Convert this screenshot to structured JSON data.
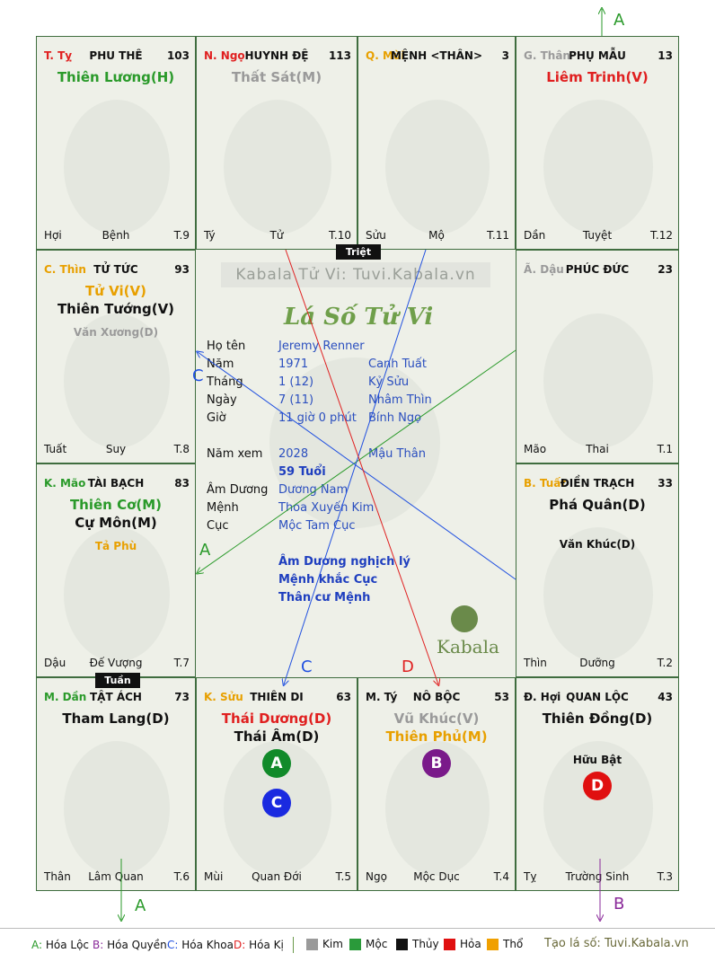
{
  "palaces": [
    {
      "branch": "T. Tỵ",
      "branch_color": "#e02020",
      "palace": "PHU THÊ",
      "number": "103",
      "stars": [
        {
          "text": "Thiên Lương(H)",
          "color": "#2a9a2a",
          "size": 15
        }
      ],
      "minor": [],
      "bottom_left": "Hợi",
      "bottom_center": "Bệnh",
      "bottom_right": "T.9"
    },
    {
      "branch": "N. Ngọ",
      "branch_color": "#e02020",
      "palace": "HUYNH ĐỆ",
      "number": "113",
      "stars": [
        {
          "text": "Thất Sát(M)",
          "color": "#9a9a9a",
          "size": 15
        }
      ],
      "minor": [],
      "bottom_left": "Tý",
      "bottom_center": "Tử",
      "bottom_right": "T.10"
    },
    {
      "branch": "Q. Mùi",
      "branch_color": "#e8a000",
      "palace": "MỆNH <THÂN>",
      "number": "3",
      "stars": [],
      "minor": [],
      "bottom_left": "Sửu",
      "bottom_center": "Mộ",
      "bottom_right": "T.11"
    },
    {
      "branch": "G. Thân",
      "branch_color": "#9a9a9a",
      "palace": "PHỤ MẪU",
      "number": "13",
      "stars": [
        {
          "text": "Liêm Trinh(V)",
          "color": "#e02020",
          "size": 15
        }
      ],
      "minor": [],
      "bottom_left": "Dần",
      "bottom_center": "Tuyệt",
      "bottom_right": "T.12"
    },
    {
      "branch": "C. Thìn",
      "branch_color": "#e8a000",
      "palace": "TỬ TỨC",
      "number": "93",
      "stars": [
        {
          "text": "Tử Vi(V)",
          "color": "#e8a000",
          "size": 15
        },
        {
          "text": "Thiên Tướng(V)",
          "color": "#111111",
          "size": 15
        }
      ],
      "minor": [
        {
          "text": "Văn Xương(D)",
          "color": "#9a9a9a"
        }
      ],
      "bottom_left": "Tuất",
      "bottom_center": "Suy",
      "bottom_right": "T.8"
    },
    {
      "branch": "Ã. Dậu",
      "branch_color": "#9a9a9a",
      "palace": "PHÚC ĐỨC",
      "number": "23",
      "stars": [],
      "minor": [],
      "bottom_left": "Mão",
      "bottom_center": "Thai",
      "bottom_right": "T.1"
    },
    {
      "branch": "K. Mão",
      "branch_color": "#2a9a2a",
      "palace": "TÀI BẠCH",
      "number": "83",
      "stars": [
        {
          "text": "Thiên Cơ(M)",
          "color": "#2a9a2a",
          "size": 15
        },
        {
          "text": "Cự Môn(M)",
          "color": "#111111",
          "size": 15
        }
      ],
      "minor": [
        {
          "text": "Tả Phù",
          "color": "#e8a000"
        }
      ],
      "bottom_left": "Dậu",
      "bottom_center": "Đế Vượng",
      "bottom_right": "T.7"
    },
    {
      "branch": "B. Tuất",
      "branch_color": "#e8a000",
      "palace": "ĐIỀN TRẠCH",
      "number": "33",
      "stars": [
        {
          "text": "Phá Quân(D)",
          "color": "#111111",
          "size": 15
        }
      ],
      "minor": [
        {
          "text": "Văn Khúc(D)",
          "color": "#111111"
        }
      ],
      "bottom_left": "Thìn",
      "bottom_center": "Dưỡng",
      "bottom_right": "T.2"
    },
    {
      "branch": "M. Dần",
      "branch_color": "#2a9a2a",
      "palace": "TẬT ÁCH",
      "number": "73",
      "stars": [
        {
          "text": "Tham Lang(D)",
          "color": "#111111",
          "size": 15
        }
      ],
      "minor": [],
      "bottom_left": "Thân",
      "bottom_center": "Lâm Quan",
      "bottom_right": "T.6"
    },
    {
      "branch": "K. Sửu",
      "branch_color": "#e8a000",
      "palace": "THIÊN DI",
      "number": "63",
      "stars": [
        {
          "text": "Thái Dương(D)",
          "color": "#e02020",
          "size": 15
        },
        {
          "text": "Thái Âm(D)",
          "color": "#111111",
          "size": 15
        }
      ],
      "minor": [],
      "bottom_left": "Mùi",
      "bottom_center": "Quan Đới",
      "bottom_right": "T.5"
    },
    {
      "branch": "M. Tý",
      "branch_color": "#111111",
      "palace": "NÔ BỘC",
      "number": "53",
      "stars": [
        {
          "text": "Vũ Khúc(V)",
          "color": "#9a9a9a",
          "size": 15
        },
        {
          "text": "Thiên Phủ(M)",
          "color": "#e8a000",
          "size": 15
        }
      ],
      "minor": [],
      "bottom_left": "Ngọ",
      "bottom_center": "Mộc Dục",
      "bottom_right": "T.4"
    },
    {
      "branch": "Đ. Hợi",
      "branch_color": "#111111",
      "palace": "QUAN LỘC",
      "number": "43",
      "stars": [
        {
          "text": "Thiên Đồng(D)",
          "color": "#111111",
          "size": 15
        }
      ],
      "minor": [
        {
          "text": "Hữu Bật",
          "color": "#111111"
        }
      ],
      "bottom_left": "Tỵ",
      "bottom_center": "Trường Sinh",
      "bottom_right": "T.3"
    }
  ],
  "badges": {
    "triet": "Triệt",
    "tuan": "Tuần"
  },
  "center": {
    "watermark": "Kabala Tử Vi: Tuvi.Kabala.vn",
    "title": "Lá Số Tử Vi",
    "logo": "Kabala",
    "rows": [
      {
        "label": "Họ tên",
        "v1": "Jeremy Renner",
        "v2": ""
      },
      {
        "label": "Năm",
        "v1": "1971",
        "v2": "Canh Tuất"
      },
      {
        "label": "Tháng",
        "v1": "1  (12)",
        "v2": "Kỷ Sửu"
      },
      {
        "label": "Ngày",
        "v1": "7  (11)",
        "v2": "Nhâm Thìn"
      },
      {
        "label": "Giờ",
        "v1": "11 giờ 0 phút",
        "v2": "Bính Ngọ"
      }
    ],
    "namxem": {
      "label": "Năm xem",
      "v1": "2028",
      "v2": "Mậu Thân"
    },
    "tuoi": "59 Tuổi",
    "rows2": [
      {
        "label": "Âm Dương",
        "v1": "Dương Nam"
      },
      {
        "label": "Mệnh",
        "v1": "Thoa Xuyến Kim"
      },
      {
        "label": "Cục",
        "v1": "Mộc Tam Cục"
      }
    ],
    "notes": [
      "Âm Dương nghịch lý",
      "Mệnh khắc Cục",
      "Thân cư Mệnh"
    ]
  },
  "markers": [
    {
      "letter": "A",
      "color": "#118a2a",
      "cell": 9,
      "row": 0
    },
    {
      "letter": "C",
      "color": "#1a2ae0",
      "cell": 9,
      "row": 1
    },
    {
      "letter": "B",
      "color": "#7a1a8a",
      "cell": 10,
      "row": 0
    },
    {
      "letter": "D",
      "color": "#e01010",
      "cell": 11,
      "row": 0
    }
  ],
  "arrow_labels": [
    {
      "text": "A",
      "color": "#2a9a2a"
    },
    {
      "text": "C",
      "color": "#2050e0"
    },
    {
      "text": "A",
      "color": "#2a9a2a"
    },
    {
      "text": "C",
      "color": "#2050e0"
    },
    {
      "text": "D",
      "color": "#e02020"
    },
    {
      "text": "A",
      "color": "#2a9a2a"
    },
    {
      "text": "B",
      "color": "#8a2a9a"
    }
  ],
  "footer": {
    "legend": [
      {
        "key": "A:",
        "text": " Hóa Lộc",
        "color": "#2a9a2a"
      },
      {
        "key": "B:",
        "text": " Hóa Quyền",
        "color": "#8a2a9a"
      },
      {
        "key": "C:",
        "text": " Hóa Khoa",
        "color": "#2050e0"
      },
      {
        "key": "D:",
        "text": " Hóa Kị",
        "color": "#e02020"
      }
    ],
    "elements": [
      {
        "name": "Kim",
        "color": "#9a9a9a"
      },
      {
        "name": "Mộc",
        "color": "#2a9a3a"
      },
      {
        "name": "Thủy",
        "color": "#111111"
      },
      {
        "name": "Hỏa",
        "color": "#e01010"
      },
      {
        "name": "Thổ",
        "color": "#f0a000"
      }
    ],
    "credit": "Tạo lá số: Tuvi.Kabala.vn"
  }
}
